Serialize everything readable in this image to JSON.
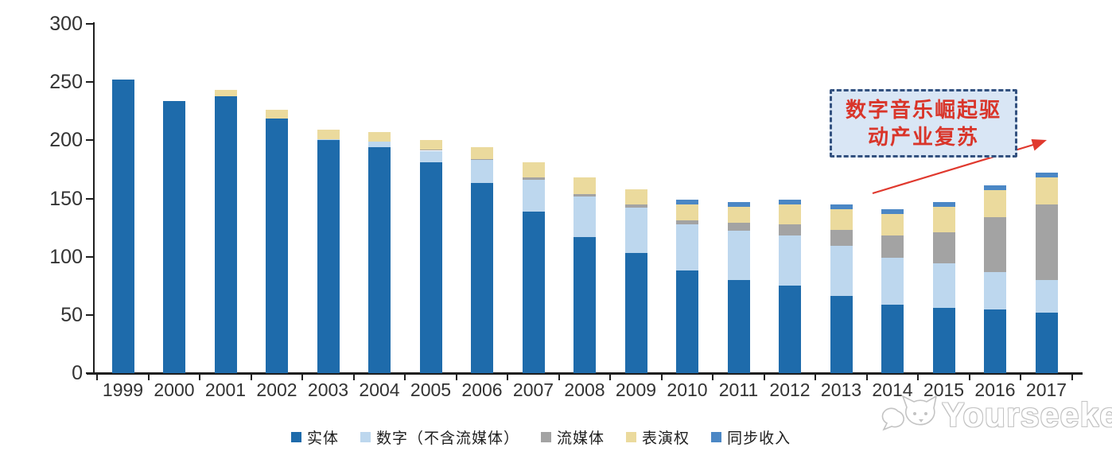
{
  "chart_data": {
    "type": "bar",
    "stacked": true,
    "unit_note": "stacked bar values read from 0-300 axis",
    "categories": [
      "1999",
      "2000",
      "2001",
      "2002",
      "2003",
      "2004",
      "2005",
      "2006",
      "2007",
      "2008",
      "2009",
      "2010",
      "2011",
      "2012",
      "2013",
      "2014",
      "2015",
      "2016",
      "2017"
    ],
    "series": [
      {
        "name": "实体",
        "color": "#1E6BAB",
        "values": [
          252,
          234,
          238,
          219,
          200,
          194,
          181,
          163,
          139,
          117,
          103,
          88,
          80,
          75,
          66,
          59,
          56,
          55,
          52
        ]
      },
      {
        "name": "数字（不含流媒体）",
        "color": "#BDD7EE",
        "values": [
          0,
          0,
          0,
          0,
          1,
          5,
          10,
          20,
          27,
          35,
          39,
          40,
          42,
          43,
          43,
          40,
          38,
          32,
          28
        ]
      },
      {
        "name": "流媒体",
        "color": "#A3A3A3",
        "values": [
          0,
          0,
          0,
          0,
          0,
          0,
          1,
          1,
          2,
          2,
          3,
          3,
          7,
          10,
          14,
          19,
          27,
          47,
          65
        ]
      },
      {
        "name": "表演权",
        "color": "#EBDA9D",
        "values": [
          0,
          0,
          5,
          7,
          8,
          8,
          8,
          10,
          13,
          14,
          13,
          14,
          14,
          17,
          18,
          19,
          22,
          23,
          23
        ]
      },
      {
        "name": "同步收入",
        "color": "#4B87C5",
        "values": [
          0,
          0,
          0,
          0,
          0,
          0,
          0,
          0,
          0,
          0,
          0,
          4,
          4,
          4,
          4,
          4,
          4,
          4,
          4
        ]
      }
    ],
    "title": "",
    "xlabel": "",
    "ylabel": "",
    "ylim": [
      0,
      300
    ],
    "yticks": [
      0,
      50,
      100,
      150,
      200,
      250,
      300
    ],
    "grid": false,
    "legend_position": "bottom"
  },
  "annotation": {
    "line1": "数字音乐崛起驱",
    "line2": "动产业复苏",
    "text_color": "#D9352A",
    "border_color": "#33517F",
    "fill_color": "#D9E6F5",
    "arrow_color": "#E0392E"
  },
  "watermark": {
    "text": "Yourseeker",
    "color": "#c3c3c3"
  }
}
